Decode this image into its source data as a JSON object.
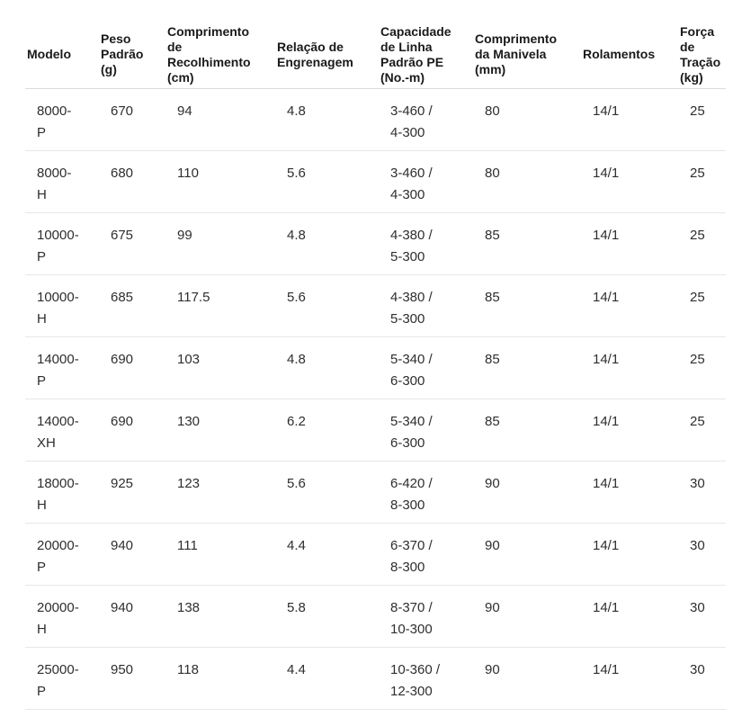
{
  "colors": {
    "background": "#ffffff",
    "header_text": "#1a1a1a",
    "body_text": "#2e2e2e",
    "divider": "#e0e0e0"
  },
  "table": {
    "headers": [
      "Modelo",
      "Peso\nPadrão\n(g)",
      "Comprimento\nde\nRecolhimento\n(cm)",
      "Relação de\nEngrenagem",
      "Capacidade\nde Linha\nPadrão PE\n(No.-m)",
      "Comprimento\nda Manivela\n(mm)",
      "Rolamentos",
      "Força\nde\nTração\n(kg)"
    ],
    "rows": [
      [
        "8000-\nP",
        "670",
        "94",
        "4.8",
        "3-460 /\n4-300",
        "80",
        "14/1",
        "25"
      ],
      [
        "8000-\nH",
        "680",
        "110",
        "5.6",
        "3-460 /\n4-300",
        "80",
        "14/1",
        "25"
      ],
      [
        "10000-\nP",
        "675",
        "99",
        "4.8",
        "4-380 /\n5-300",
        "85",
        "14/1",
        "25"
      ],
      [
        "10000-\nH",
        "685",
        "117.5",
        "5.6",
        "4-380 /\n5-300",
        "85",
        "14/1",
        "25"
      ],
      [
        "14000-\nP",
        "690",
        "103",
        "4.8",
        "5-340 /\n6-300",
        "85",
        "14/1",
        "25"
      ],
      [
        "14000-\nXH",
        "690",
        "130",
        "6.2",
        "5-340 /\n6-300",
        "85",
        "14/1",
        "25"
      ],
      [
        "18000-\nH",
        "925",
        "123",
        "5.6",
        "6-420 /\n8-300",
        "90",
        "14/1",
        "30"
      ],
      [
        "20000-\nP",
        "940",
        "111",
        "4.4",
        "6-370 /\n8-300",
        "90",
        "14/1",
        "30"
      ],
      [
        "20000-\nH",
        "940",
        "138",
        "5.8",
        "8-370 /\n10-300",
        "90",
        "14/1",
        "30"
      ],
      [
        "25000-\nP",
        "950",
        "118",
        "4.4",
        "10-360 /\n12-300",
        "90",
        "14/1",
        "30"
      ]
    ]
  }
}
